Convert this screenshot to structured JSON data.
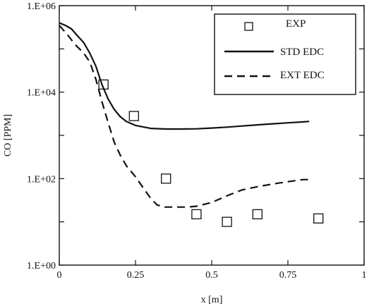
{
  "chart_data": {
    "type": "line",
    "title": "",
    "xlabel": "x [m]",
    "ylabel": "CO [PPM]",
    "x_scale": "linear",
    "y_scale": "log",
    "xlim": [
      0,
      1
    ],
    "ylim": [
      1,
      1000000
    ],
    "grid": false,
    "legend_position": "top-right",
    "x_ticks": [
      {
        "value": 0,
        "label": "0"
      },
      {
        "value": 0.25,
        "label": "0.25"
      },
      {
        "value": 0.5,
        "label": "0.5"
      },
      {
        "value": 0.75,
        "label": "0.75"
      },
      {
        "value": 1,
        "label": "1"
      }
    ],
    "y_ticks": [
      {
        "value": 1,
        "label": "1.E+00"
      },
      {
        "value": 100,
        "label": "1.E+02"
      },
      {
        "value": 10000,
        "label": "1.E+04"
      },
      {
        "value": 1000000,
        "label": "1.E+06"
      }
    ],
    "series": [
      {
        "name": "EXP",
        "kind": "scatter",
        "marker": "open-square",
        "color": "#111111",
        "x": [
          0.145,
          0.245,
          0.35,
          0.45,
          0.55,
          0.65,
          0.85
        ],
        "y": [
          15000,
          2800,
          100,
          15,
          10,
          15,
          12
        ]
      },
      {
        "name": "STD EDC",
        "kind": "line",
        "dash": "solid",
        "color": "#111111",
        "x": [
          0.0,
          0.02,
          0.04,
          0.06,
          0.08,
          0.1,
          0.12,
          0.14,
          0.16,
          0.18,
          0.2,
          0.22,
          0.25,
          0.3,
          0.35,
          0.4,
          0.45,
          0.5,
          0.55,
          0.6,
          0.65,
          0.7,
          0.75,
          0.8,
          0.82
        ],
        "y": [
          400000,
          350000,
          290000,
          200000,
          140000,
          80000,
          40000,
          15000,
          7000,
          4000,
          2700,
          2100,
          1700,
          1450,
          1400,
          1400,
          1420,
          1480,
          1550,
          1650,
          1750,
          1850,
          1950,
          2050,
          2100
        ]
      },
      {
        "name": "EXT EDC",
        "kind": "line",
        "dash": "dashed",
        "color": "#111111",
        "x": [
          0.0,
          0.03,
          0.05,
          0.08,
          0.1,
          0.12,
          0.14,
          0.16,
          0.18,
          0.2,
          0.22,
          0.25,
          0.28,
          0.3,
          0.32,
          0.34,
          0.38,
          0.42,
          0.45,
          0.5,
          0.55,
          0.6,
          0.65,
          0.7,
          0.75,
          0.8,
          0.82
        ],
        "y": [
          350000,
          200000,
          130000,
          80000,
          50000,
          20000,
          6000,
          2000,
          700,
          350,
          200,
          110,
          55,
          35,
          25,
          22,
          22,
          22,
          23,
          28,
          40,
          55,
          65,
          75,
          85,
          95,
          95
        ]
      }
    ]
  }
}
